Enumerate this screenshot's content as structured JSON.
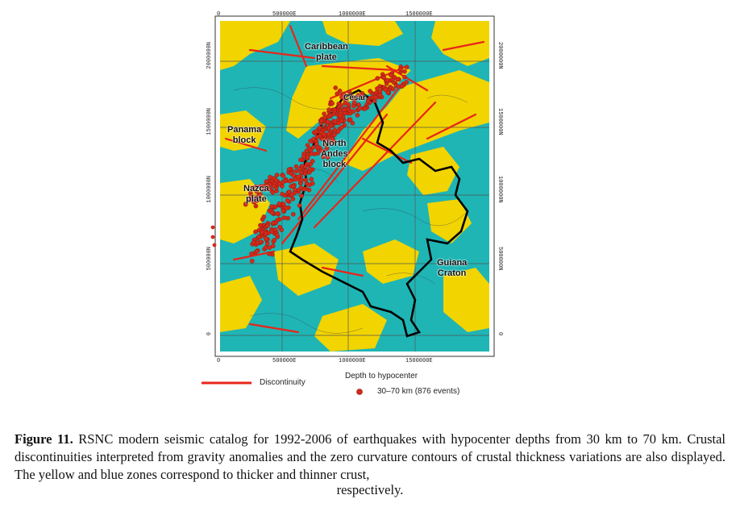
{
  "map": {
    "top_ticks": [
      "500000E",
      "1000000E",
      "1500000E"
    ],
    "bottom_ticks": [
      "500000E",
      "1000000E",
      "1500000E"
    ],
    "left_ticks": [
      "2000000N",
      "1500000N",
      "1000000N",
      "500000N",
      "0"
    ],
    "right_ticks": [
      "2000000N",
      "1500000N",
      "1000000N",
      "500000N",
      "0"
    ],
    "corner_top_left": "0",
    "corner_bottom_left": "0",
    "regions": {
      "caribbean": [
        "Caribbean",
        "plate"
      ],
      "panama": [
        "Panama",
        "block"
      ],
      "north_andes": [
        "North",
        "Andes",
        "block"
      ],
      "nazca": [
        "Nazca",
        "plate"
      ],
      "guiana": [
        "Guiana",
        "Craton"
      ],
      "cesar": "César"
    },
    "colors": {
      "thick_crust": "#f2d400",
      "thin_crust": "#1fb5b5",
      "discontinuity": "#e8251a",
      "hypocenter": "#d42a1a",
      "border": "#000000"
    }
  },
  "legend": {
    "discontinuity_label": "Discontinuity",
    "depth_title": "Depth to hypocenter",
    "depth_range": "30–70 km (876 events)"
  },
  "caption": {
    "label": "Figure 11.",
    "text": " RSNC modern seismic catalog for 1992-2006 of earthquakes with hypocenter depths from 30 km to 70 km. Crustal discontinuities interpreted from gravity anomalies and the zero curvature contours of crustal thickness variations are also displayed. The yellow and blue zones correspond to thicker and thinner crust,",
    "last_line": "respectively."
  }
}
